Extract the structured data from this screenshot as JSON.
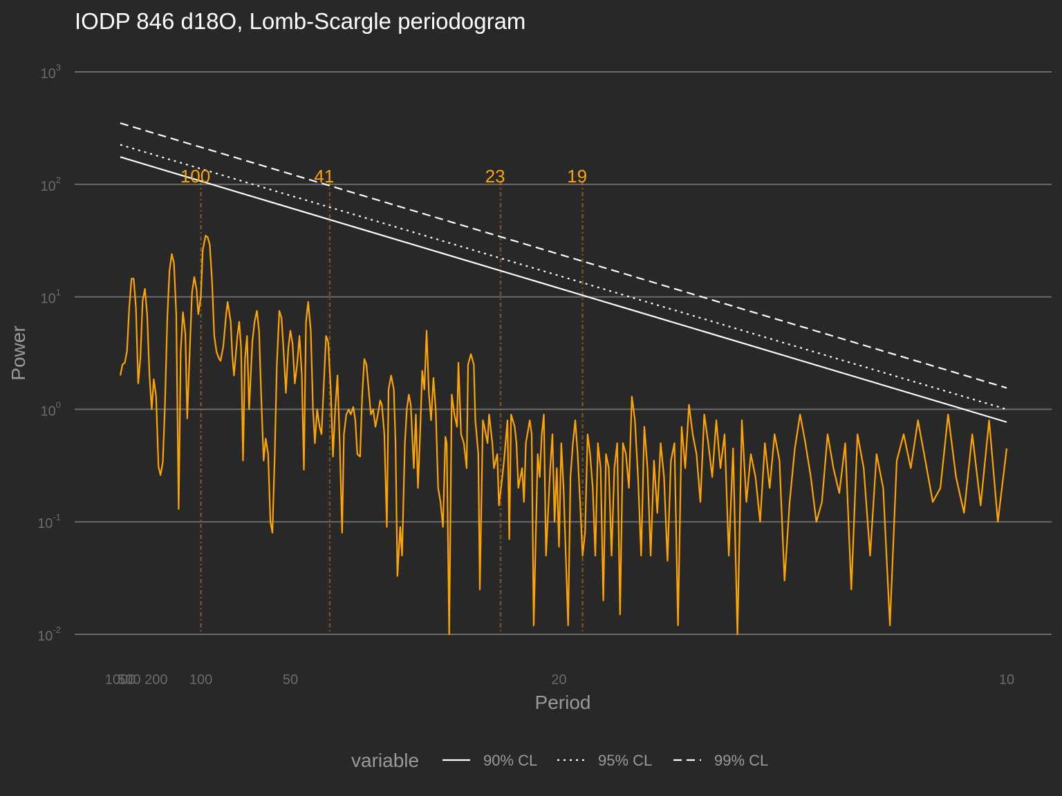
{
  "chart_data": {
    "type": "line",
    "title": "IODP 846 d18O, Lomb-Scargle periodogram",
    "xlabel": "Period",
    "ylabel": "Power",
    "x_scale": "reciprocal",
    "y_scale": "log10",
    "xlim": [
      1000,
      10
    ],
    "ylim": [
      0.01,
      1000
    ],
    "x_ticks": [
      {
        "value": 1000,
        "label": "1000"
      },
      {
        "value": 500,
        "label": "500"
      },
      {
        "value": 200,
        "label": "200"
      },
      {
        "value": 100,
        "label": "100"
      },
      {
        "value": 50,
        "label": "50"
      },
      {
        "value": 20,
        "label": "20"
      },
      {
        "value": 10,
        "label": "10"
      }
    ],
    "y_ticks": [
      {
        "value": 0.01,
        "base": "10",
        "exp": "-2"
      },
      {
        "value": 0.1,
        "base": "10",
        "exp": "-1"
      },
      {
        "value": 1,
        "base": "10",
        "exp": "0"
      },
      {
        "value": 10,
        "base": "10",
        "exp": "1"
      },
      {
        "value": 100,
        "base": "10",
        "exp": "2"
      },
      {
        "value": 1000,
        "base": "10",
        "exp": "3"
      }
    ],
    "grid": "horizontal major",
    "legend": {
      "title": "variable",
      "position": "bottom",
      "entries": [
        {
          "label": "90% CL",
          "dash": "solid"
        },
        {
          "label": "95% CL",
          "dash": "dotted"
        },
        {
          "label": "99% CL",
          "dash": "dashed"
        }
      ]
    },
    "colors": {
      "background": "#282828",
      "spectrum": "#FFA500",
      "confidence": "#FFFFFF",
      "grid": "#6b6b6b"
    },
    "spectrum": {
      "period": [
        1000,
        800,
        667,
        571,
        500,
        444,
        400,
        364,
        333,
        308,
        286,
        267,
        250,
        235,
        222,
        211,
        200,
        190,
        182,
        174,
        167,
        160,
        154,
        148,
        143,
        138,
        133,
        129,
        125,
        121,
        118,
        114,
        111,
        108,
        105,
        103,
        100,
        98,
        95,
        93,
        91,
        89,
        87,
        85,
        83,
        82,
        80,
        78,
        77,
        75,
        74,
        73,
        71,
        70,
        69,
        68,
        67,
        66,
        65,
        63.5,
        62.5,
        61.5,
        60.6,
        59.7,
        58.8,
        58,
        57.1,
        56.3,
        55.6,
        54.8,
        54.1,
        53.3,
        52.6,
        51.9,
        51.3,
        50.6,
        50,
        49.4,
        48.8,
        48.2,
        47.6,
        47,
        46.5,
        46,
        45.5,
        44.9,
        44.4,
        44,
        43.5,
        43,
        42.6,
        42.1,
        41.7,
        41.3,
        40.8,
        40.4,
        40,
        39.6,
        39.2,
        38.8,
        38.5,
        38.1,
        37.7,
        37.4,
        37,
        36.7,
        36.4,
        36,
        35.7,
        35.4,
        35.1,
        34.8,
        34.5,
        34.2,
        33.9,
        33.6,
        33.3,
        33.1,
        32.8,
        32.5,
        32.3,
        32,
        31.7,
        31.5,
        31.3,
        31,
        30.8,
        30.5,
        30.3,
        30.1,
        29.9,
        29.6,
        29.4,
        29.2,
        29,
        28.8,
        28.6,
        28.4,
        28.2,
        28,
        27.8,
        27.6,
        27.4,
        27.2,
        27,
        26.8,
        26.7,
        26.5,
        26.3,
        26.1,
        25.9,
        25.8,
        25.6,
        25.4,
        25.2,
        25.1,
        24.9,
        24.7,
        24.6,
        24.4,
        24.3,
        24.1,
        24,
        23.8,
        23.7,
        23.5,
        23.4,
        23.2,
        23.1,
        22.9,
        22.8,
        22.6,
        22.5,
        22.4,
        22.2,
        22.1,
        22,
        21.8,
        21.7,
        21.6,
        21.4,
        21.3,
        21.2,
        21,
        20.9,
        20.8,
        20.7,
        20.6,
        20.4,
        20.3,
        20.2,
        20.1,
        20,
        19.9,
        19.8,
        19.6,
        19.5,
        19.4,
        19.3,
        19.2,
        19.1,
        19,
        18.9,
        18.8,
        18.7,
        18.6,
        18.5,
        18.4,
        18.3,
        18.2,
        18.1,
        18,
        17.9,
        17.8,
        17.7,
        17.6,
        17.5,
        17.4,
        17.3,
        17.2,
        17.1,
        17,
        16.9,
        16.8,
        16.7,
        16.6,
        16.5,
        16.4,
        16.3,
        16.2,
        16.1,
        16,
        15.9,
        15.8,
        15.7,
        15.6,
        15.5,
        15.4,
        15.3,
        15.2,
        15.1,
        15,
        14.9,
        14.8,
        14.7,
        14.6,
        14.5,
        14.4,
        14.3,
        14.2,
        14.1,
        14,
        13.9,
        13.8,
        13.7,
        13.6,
        13.5,
        13.4,
        13.3,
        13.2,
        13.1,
        13,
        12.9,
        12.8,
        12.7,
        12.6,
        12.5,
        12.4,
        12.3,
        12.2,
        12.1,
        12,
        11.9,
        11.8,
        11.7,
        11.6,
        11.5,
        11.4,
        11.3,
        11.2,
        11.1,
        11,
        10.9,
        10.8,
        10.7,
        10.6,
        10.5,
        10.4,
        10.3,
        10.2,
        10.1,
        10
      ],
      "power": [
        2.0,
        2.5,
        2.6,
        3.3,
        8.0,
        14.5,
        14.5,
        8.0,
        1.7,
        2.9,
        9.2,
        11.8,
        7.0,
        2.0,
        1.0,
        1.85,
        1.3,
        0.31,
        0.26,
        0.34,
        1.1,
        6.5,
        17.0,
        24.0,
        20.0,
        7.0,
        0.13,
        3.3,
        7.3,
        4.7,
        0.83,
        3.5,
        10.8,
        15.0,
        11.5,
        7.0,
        10.0,
        26.0,
        35.0,
        34.0,
        29.0,
        14.0,
        4.5,
        3.2,
        2.8,
        2.7,
        3.6,
        7.0,
        9.0,
        6.0,
        3.0,
        2.0,
        4.5,
        6.0,
        3.5,
        0.35,
        2.8,
        4.5,
        1.0,
        4.0,
        6.0,
        7.5,
        5.0,
        1.2,
        0.35,
        0.55,
        0.4,
        0.1,
        0.08,
        0.4,
        2.5,
        7.5,
        6.5,
        3.0,
        1.4,
        3.5,
        5.0,
        3.8,
        1.7,
        2.5,
        4.5,
        2.0,
        0.29,
        6.0,
        9.0,
        5.0,
        1.0,
        0.5,
        1.0,
        0.7,
        0.6,
        1.8,
        4.5,
        4.0,
        1.5,
        0.38,
        1.0,
        2.0,
        0.5,
        0.08,
        0.6,
        0.9,
        1.0,
        0.9,
        1.05,
        0.8,
        0.4,
        0.38,
        1.3,
        2.8,
        2.5,
        1.5,
        0.9,
        1.0,
        0.7,
        0.9,
        1.2,
        1.1,
        0.6,
        0.09,
        1.5,
        2.0,
        1.5,
        0.5,
        0.033,
        0.09,
        0.05,
        0.5,
        1.0,
        1.35,
        1.1,
        0.3,
        0.9,
        0.2,
        0.6,
        2.2,
        1.5,
        5.0,
        1.4,
        0.8,
        1.9,
        1.0,
        0.2,
        0.15,
        0.09,
        0.57,
        0.5,
        0.01,
        1.35,
        0.9,
        0.7,
        2.6,
        0.6,
        0.5,
        0.3,
        2.5,
        3.1,
        2.5,
        0.8,
        0.4,
        0.025,
        0.8,
        0.7,
        0.5,
        0.9,
        0.5,
        0.3,
        0.4,
        0.14,
        0.25,
        0.35,
        0.8,
        0.07,
        0.9,
        0.7,
        0.5,
        0.2,
        0.3,
        0.15,
        0.5,
        0.8,
        0.6,
        0.012,
        0.4,
        0.25,
        0.6,
        0.9,
        0.05,
        0.3,
        0.6,
        0.1,
        0.3,
        0.06,
        0.5,
        0.2,
        0.012,
        0.25,
        0.5,
        0.8,
        0.4,
        0.15,
        0.05,
        0.08,
        0.6,
        0.4,
        0.2,
        0.05,
        0.5,
        0.3,
        0.02,
        0.4,
        0.3,
        0.05,
        0.3,
        0.5,
        0.015,
        0.5,
        0.4,
        0.2,
        1.3,
        0.8,
        0.25,
        0.05,
        0.7,
        0.3,
        0.05,
        0.35,
        0.12,
        0.5,
        0.25,
        0.045,
        0.35,
        0.5,
        0.012,
        0.7,
        0.3,
        1.1,
        0.6,
        0.4,
        0.15,
        0.9,
        0.5,
        0.25,
        0.8,
        0.3,
        0.6,
        0.05,
        0.45,
        0.01,
        0.8,
        0.15,
        0.4,
        0.25,
        0.1,
        0.5,
        0.2,
        0.6,
        0.35,
        0.03,
        0.15,
        0.45,
        0.9,
        0.5,
        0.25,
        0.1,
        0.15,
        0.6,
        0.3,
        0.18,
        0.5,
        0.025,
        0.6,
        0.3,
        0.05,
        0.4,
        0.2,
        0.012,
        0.35,
        0.6,
        0.3,
        0.8,
        0.35,
        0.15,
        0.2,
        0.9,
        0.25,
        0.12,
        0.6,
        0.14,
        0.8,
        0.1,
        0.45,
        0.015,
        0.3,
        0.85,
        0.17
      ]
    },
    "confidence_limits": [
      {
        "name": "90% CL",
        "dash": "solid",
        "period": [
          1000,
          10
        ],
        "power": [
          175,
          0.77
        ]
      },
      {
        "name": "95% CL",
        "dash": "dotted",
        "period": [
          1000,
          10
        ],
        "power": [
          225,
          1.0
        ]
      },
      {
        "name": "99% CL",
        "dash": "dashed",
        "period": [
          1000,
          10
        ],
        "power": [
          350,
          1.55
        ]
      }
    ],
    "annotations": [
      {
        "label": "100",
        "period": 100
      },
      {
        "label": "41",
        "period": 41
      },
      {
        "label": "23",
        "period": 23
      },
      {
        "label": "19",
        "period": 19
      }
    ]
  }
}
